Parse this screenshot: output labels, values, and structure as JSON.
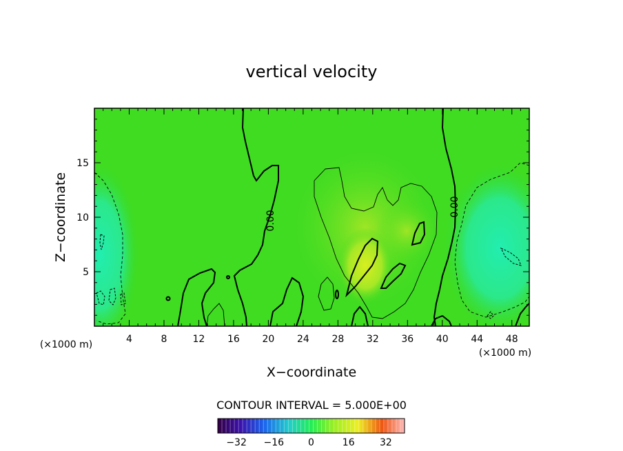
{
  "chart_data": {
    "type": "heatmap",
    "title": "vertical velocity",
    "xlabel": "X−coordinate",
    "ylabel": "Z−coordinate",
    "x_unit": "(×1000 m)",
    "xlim": [
      0,
      50
    ],
    "ylim": [
      0,
      20
    ],
    "xticks": [
      "4",
      "8",
      "12",
      "16",
      "20",
      "24",
      "28",
      "32",
      "36",
      "40",
      "44",
      "48"
    ],
    "yticks": [
      "5",
      "10",
      "15"
    ],
    "contour_label": "0.00",
    "contour_interval_text": "CONTOUR INTERVAL = 5.000E+00",
    "colorbar": {
      "range": [
        -40,
        40
      ],
      "ticks": [
        "−32",
        "−16",
        "0",
        "16",
        "32"
      ]
    },
    "grid": false,
    "colors": {
      "field_base": "#33dd22",
      "field_updraft": "#bbee22",
      "field_downdraft": "#22eeaa",
      "contour": "#000000"
    }
  }
}
